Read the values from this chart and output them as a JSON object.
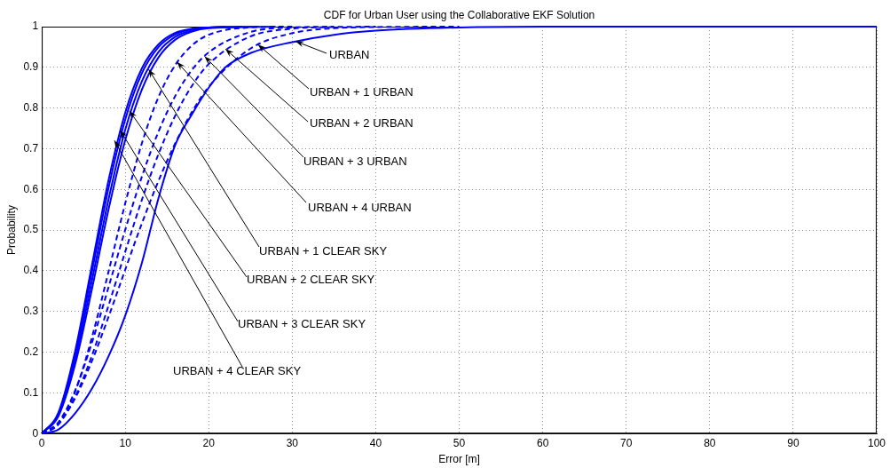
{
  "chart_data": {
    "type": "line",
    "title": "CDF for Urban User using the Collaborative EKF Solution",
    "xlabel": "Error [m]",
    "ylabel": "Probability",
    "xlim": [
      0,
      100
    ],
    "xticks": [
      0,
      10,
      20,
      30,
      40,
      50,
      60,
      70,
      80,
      90,
      100
    ],
    "ylim": [
      0,
      1
    ],
    "yticks": [
      0,
      0.1,
      0.2,
      0.3,
      0.4,
      0.5,
      0.6,
      0.7,
      0.8,
      0.9,
      1
    ],
    "grid": true,
    "legend": false,
    "marker": "none",
    "series": [
      {
        "color": "#0000ff",
        "line_style": "solid",
        "x": [
          0,
          2,
          4,
          6,
          8,
          10,
          12,
          14,
          16,
          18,
          20,
          22,
          25,
          30,
          35,
          40,
          50,
          60,
          100
        ],
        "values": [
          0,
          0.01,
          0.05,
          0.11,
          0.19,
          0.29,
          0.42,
          0.58,
          0.71,
          0.785,
          0.85,
          0.9,
          0.935,
          0.962,
          0.98,
          0.99,
          0.998,
          1,
          1
        ]
      },
      {
        "color": "#0000ff",
        "line_style": "dashed",
        "x": [
          0,
          2,
          4,
          6,
          8,
          10,
          12,
          14,
          16,
          18,
          20,
          25,
          30,
          35,
          40,
          50
        ],
        "values": [
          0,
          0.024,
          0.087,
          0.178,
          0.287,
          0.403,
          0.517,
          0.622,
          0.714,
          0.791,
          0.852,
          0.946,
          0.984,
          0.996,
          0.999,
          1
        ]
      },
      {
        "color": "#0000ff",
        "line_style": "dashed",
        "x": [
          0,
          2,
          4,
          6,
          8,
          10,
          12,
          14,
          16,
          18,
          20,
          25,
          30,
          35,
          40
        ],
        "values": [
          0,
          0.023,
          0.09,
          0.191,
          0.315,
          0.447,
          0.575,
          0.688,
          0.782,
          0.855,
          0.908,
          0.976,
          0.995,
          0.999,
          1
        ]
      },
      {
        "color": "#0000ff",
        "line_style": "dashed",
        "x": [
          0,
          2,
          4,
          6,
          8,
          10,
          12,
          14,
          16,
          18,
          20,
          25,
          30,
          35
        ],
        "values": [
          0,
          0.028,
          0.106,
          0.223,
          0.36,
          0.501,
          0.632,
          0.743,
          0.83,
          0.894,
          0.937,
          0.987,
          0.998,
          1
        ]
      },
      {
        "color": "#0000ff",
        "line_style": "dashed",
        "x": [
          0,
          2,
          4,
          6,
          8,
          10,
          12,
          14,
          16,
          18,
          20,
          25,
          30
        ],
        "values": [
          0,
          0.023,
          0.103,
          0.236,
          0.398,
          0.566,
          0.714,
          0.828,
          0.906,
          0.954,
          0.98,
          0.998,
          1
        ]
      },
      {
        "color": "#0000ff",
        "line_style": "solid",
        "x": [
          0,
          2,
          4,
          6,
          8,
          10,
          12,
          14,
          16,
          18,
          20,
          28
        ],
        "values": [
          0,
          0.043,
          0.17,
          0.354,
          0.551,
          0.721,
          0.846,
          0.925,
          0.968,
          0.988,
          0.996,
          1
        ]
      },
      {
        "color": "#0000ff",
        "line_style": "solid",
        "x": [
          0,
          2,
          4,
          6,
          8,
          10,
          12,
          14,
          16,
          18,
          20,
          26
        ],
        "values": [
          0,
          0.046,
          0.182,
          0.375,
          0.576,
          0.747,
          0.866,
          0.938,
          0.975,
          0.991,
          0.997,
          1
        ]
      },
      {
        "color": "#0000ff",
        "line_style": "solid",
        "x": [
          0,
          2,
          4,
          6,
          8,
          10,
          12,
          14,
          16,
          18,
          20,
          24
        ],
        "values": [
          0,
          0.049,
          0.194,
          0.397,
          0.604,
          0.772,
          0.886,
          0.95,
          0.981,
          0.994,
          0.998,
          1
        ]
      },
      {
        "color": "#0000ff",
        "line_style": "solid",
        "x": [
          0,
          2,
          4,
          6,
          8,
          10,
          12,
          14,
          16,
          18,
          20,
          22
        ],
        "values": [
          0,
          0.052,
          0.203,
          0.413,
          0.623,
          0.789,
          0.898,
          0.957,
          0.985,
          0.995,
          0.998,
          1
        ]
      }
    ],
    "annotations": [
      {
        "text": "URBAN",
        "x": 30.4,
        "y": 0.964
      },
      {
        "text": "URBAN + 1 URBAN",
        "x": 25.9,
        "y": 0.956
      },
      {
        "text": "URBAN + 2 URBAN",
        "x": 22,
        "y": 0.945
      },
      {
        "text": "URBAN + 3 URBAN",
        "x": 19.5,
        "y": 0.927
      },
      {
        "text": "URBAN + 4 URBAN",
        "x": 16.2,
        "y": 0.913
      },
      {
        "text": "URBAN + 1 CLEAR SKY",
        "x": 12.8,
        "y": 0.895
      },
      {
        "text": "URBAN + 2 CLEAR SKY",
        "x": 10.5,
        "y": 0.793
      },
      {
        "text": "URBAN + 3 CLEAR SKY",
        "x": 9.4,
        "y": 0.745
      },
      {
        "text": "URBAN + 4 CLEAR SKY",
        "x": 8.7,
        "y": 0.72
      }
    ]
  }
}
